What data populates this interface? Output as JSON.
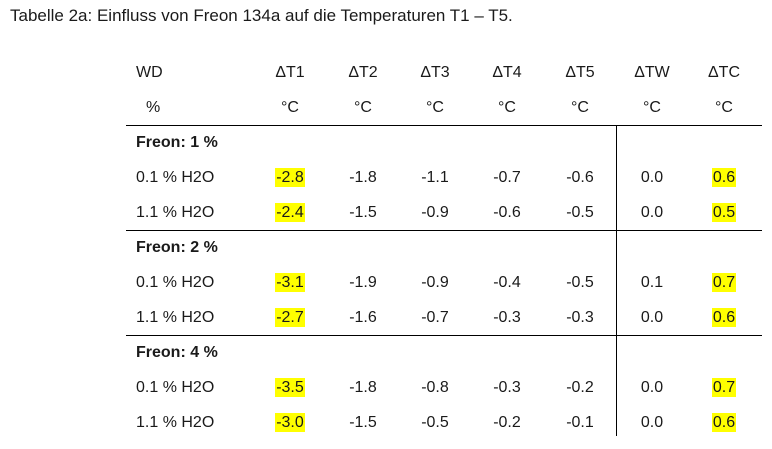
{
  "caption": "Tabelle 2a: Einfluss von Freon 134a auf die Temperaturen T1 – T5.",
  "header": {
    "names": [
      "WD",
      "ΔT1",
      "ΔT2",
      "ΔT3",
      "ΔT4",
      "ΔT5",
      "ΔTW",
      "ΔTC"
    ],
    "units": [
      "%",
      "°C",
      "°C",
      "°C",
      "°C",
      "°C",
      "°C",
      "°C"
    ]
  },
  "highlight_color": "#ffff00",
  "groups": [
    {
      "label": "Freon: 1 %",
      "rows": [
        {
          "wd": "0.1 % H2O",
          "values": [
            "-2.8",
            "-1.8",
            "-1.1",
            "-0.7",
            "-0.6",
            "0.0",
            "0.6"
          ]
        },
        {
          "wd": "1.1 % H2O",
          "values": [
            "-2.4",
            "-1.5",
            "-0.9",
            "-0.6",
            "-0.5",
            "0.0",
            "0.5"
          ]
        }
      ]
    },
    {
      "label": "Freon: 2 %",
      "rows": [
        {
          "wd": "0.1 % H2O",
          "values": [
            "-3.1",
            "-1.9",
            "-0.9",
            "-0.4",
            "-0.5",
            "0.1",
            "0.7"
          ]
        },
        {
          "wd": "1.1 % H2O",
          "values": [
            "-2.7",
            "-1.6",
            "-0.7",
            "-0.3",
            "-0.3",
            "0.0",
            "0.6"
          ]
        }
      ]
    },
    {
      "label": "Freon: 4 %",
      "rows": [
        {
          "wd": "0.1 % H2O",
          "values": [
            "-3.5",
            "-1.8",
            "-0.8",
            "-0.3",
            "-0.2",
            "0.0",
            "0.7"
          ]
        },
        {
          "wd": "1.1 % H2O",
          "values": [
            "-3.0",
            "-1.5",
            "-0.5",
            "-0.2",
            "-0.1",
            "0.0",
            "0.6"
          ]
        }
      ]
    }
  ]
}
